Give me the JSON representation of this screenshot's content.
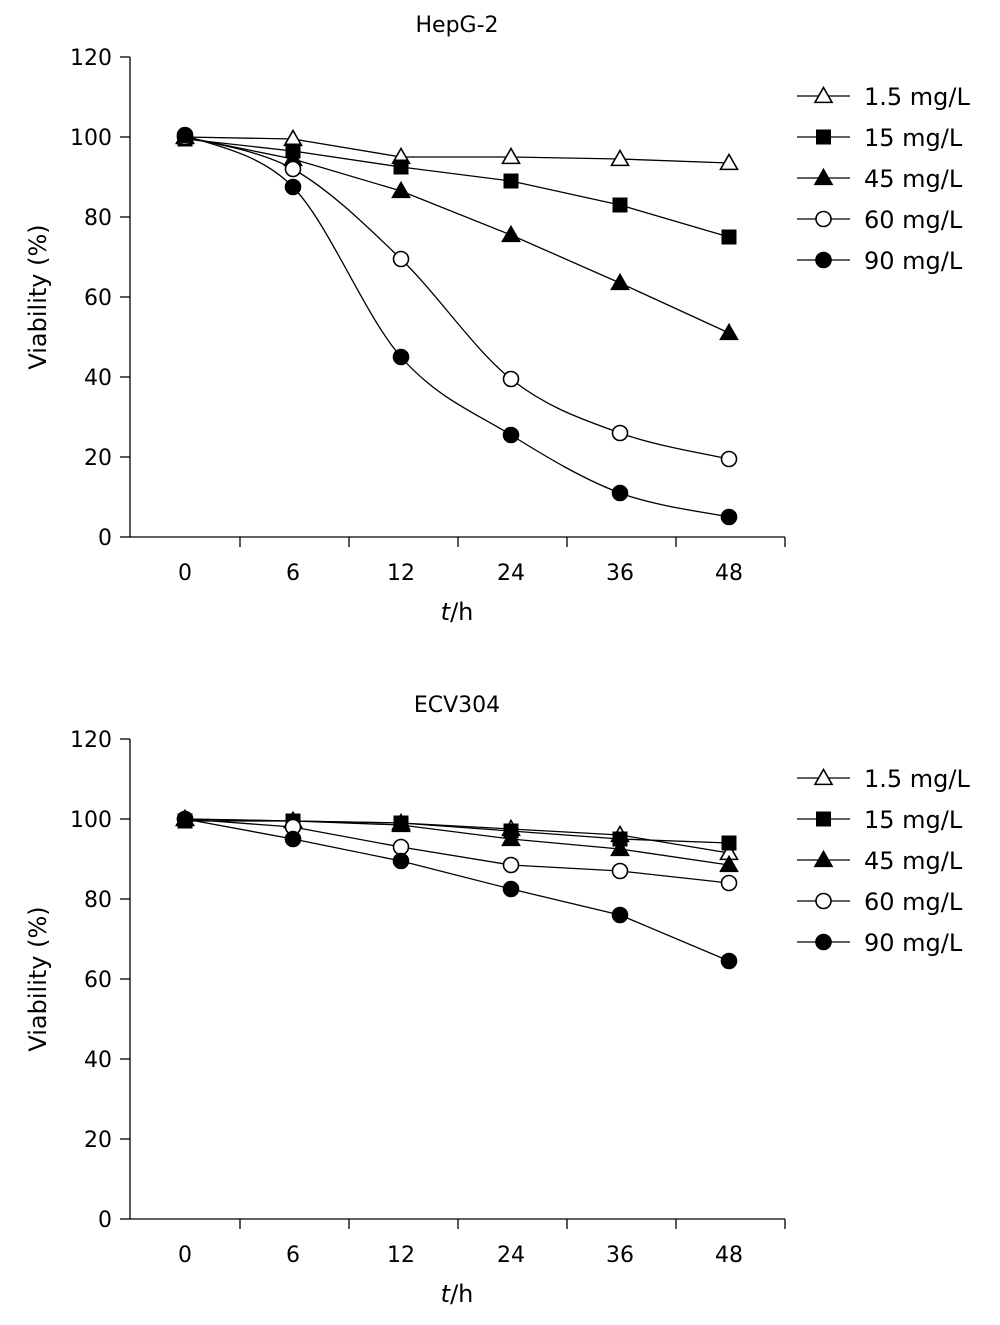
{
  "chart_data": [
    {
      "type": "line",
      "title": "HepG-2",
      "xlabel_italic": "t",
      "xlabel_rest": "/h",
      "ylabel": "Viability (%)",
      "categories": [
        "0",
        "6",
        "12",
        "24",
        "36",
        "48"
      ],
      "ylim": [
        0,
        120
      ],
      "yticks": [
        "0",
        "20",
        "40",
        "60",
        "80",
        "100",
        "120"
      ],
      "grid": false,
      "legend_position": "right",
      "series": [
        {
          "name": "1.5 mg/L",
          "marker": "triangle-open",
          "smooth": false,
          "values": [
            100,
            99.5,
            95,
            95,
            94.5,
            93.5
          ]
        },
        {
          "name": "15 mg/L",
          "marker": "square-filled",
          "smooth": false,
          "values": [
            99.5,
            96.5,
            92.5,
            89,
            83,
            75
          ]
        },
        {
          "name": "45 mg/L",
          "marker": "triangle-filled",
          "smooth": false,
          "values": [
            100,
            94.5,
            86.5,
            75.5,
            63.5,
            51
          ]
        },
        {
          "name": "60 mg/L",
          "marker": "circle-open",
          "smooth": true,
          "values": [
            100,
            92,
            69.5,
            39.5,
            26,
            19.5
          ]
        },
        {
          "name": "90 mg/L",
          "marker": "circle-filled",
          "smooth": true,
          "values": [
            100.5,
            87.5,
            45,
            25.5,
            11,
            5
          ]
        }
      ]
    },
    {
      "type": "line",
      "title": "ECV304",
      "xlabel_italic": "t",
      "xlabel_rest": "/h",
      "ylabel": "Viability (%)",
      "categories": [
        "0",
        "6",
        "12",
        "24",
        "36",
        "48"
      ],
      "ylim": [
        0,
        120
      ],
      "yticks": [
        "0",
        "20",
        "40",
        "60",
        "80",
        "100",
        "120"
      ],
      "grid": false,
      "legend_position": "right",
      "series": [
        {
          "name": "1.5 mg/L",
          "marker": "triangle-open",
          "smooth": false,
          "values": [
            100,
            99.5,
            99,
            97.5,
            96,
            91.5
          ]
        },
        {
          "name": "15 mg/L",
          "marker": "square-filled",
          "smooth": false,
          "values": [
            99.5,
            99.5,
            99,
            97,
            95,
            94
          ]
        },
        {
          "name": "45 mg/L",
          "marker": "triangle-filled",
          "smooth": false,
          "values": [
            100,
            99.5,
            98.5,
            95,
            92.5,
            88.5
          ]
        },
        {
          "name": "60 mg/L",
          "marker": "circle-open",
          "smooth": false,
          "values": [
            100,
            98,
            93,
            88.5,
            87,
            84
          ]
        },
        {
          "name": "90 mg/L",
          "marker": "circle-filled",
          "smooth": false,
          "values": [
            100,
            95,
            89.5,
            82.5,
            76,
            64.5
          ]
        }
      ]
    }
  ],
  "colors": {
    "ink": "#000000",
    "background": "#ffffff"
  }
}
